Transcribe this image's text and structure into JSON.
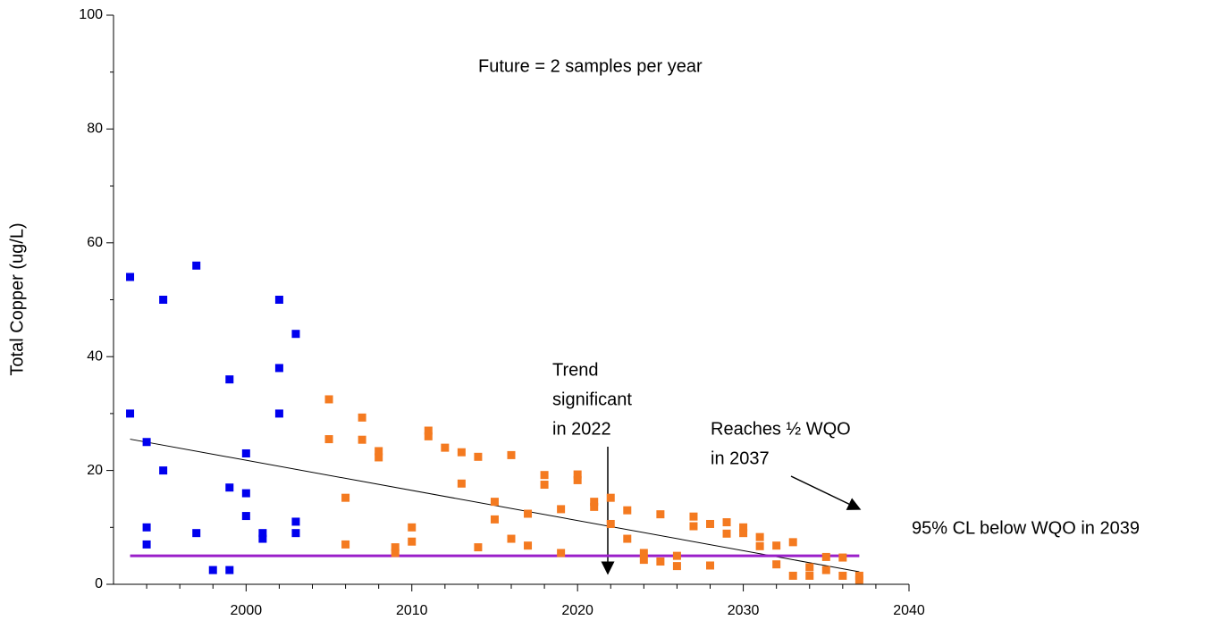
{
  "chart_data": {
    "type": "scatter",
    "y_label": "Total Copper (ug/L)",
    "xlim": [
      1992,
      2040
    ],
    "xticks": [
      2000,
      2010,
      2020,
      2030,
      2040
    ],
    "xminorticks": [
      1994,
      1996,
      1998,
      2002,
      2004,
      2006,
      2008,
      2012,
      2014,
      2016,
      2018,
      2022,
      2024,
      2026,
      2028,
      2032,
      2034,
      2036,
      2038
    ],
    "ylim": [
      0,
      100
    ],
    "yticks": [
      0,
      20,
      40,
      60,
      80,
      100
    ],
    "yminorticks": [
      10,
      30,
      50,
      70,
      90
    ],
    "series": [
      {
        "color": "#0000ee",
        "x": [
          1993,
          1993,
          1994,
          1994,
          1994,
          1995,
          1995,
          1997,
          1997,
          1998,
          1999,
          1999,
          1999,
          2000,
          2000,
          2000,
          2001,
          2001,
          2002,
          2002,
          2002,
          2003,
          2003,
          2003
        ],
        "values": [
          54,
          30,
          25,
          10,
          7,
          50,
          20,
          56,
          9,
          2.5,
          36,
          17,
          2.5,
          23,
          16,
          12,
          9,
          8,
          50,
          38,
          30,
          44,
          11,
          9
        ]
      },
      {
        "color": "#f47a20",
        "x": [
          2005,
          2005,
          2006,
          2006,
          2007,
          2007,
          2008,
          2008,
          2009,
          2009,
          2010,
          2010,
          2011,
          2011,
          2012,
          2013,
          2013,
          2014,
          2014,
          2015,
          2015,
          2016,
          2016,
          2017,
          2017,
          2018,
          2018,
          2019,
          2019,
          2020,
          2020,
          2021,
          2021,
          2022,
          2022,
          2023,
          2023,
          2024,
          2024,
          2025,
          2025,
          2026,
          2026,
          2027,
          2027,
          2028,
          2028,
          2029,
          2029,
          2030,
          2030,
          2031,
          2031,
          2032,
          2032,
          2033,
          2033,
          2034,
          2034,
          2035,
          2035,
          2036,
          2036,
          2037,
          2037
        ],
        "values": [
          32.5,
          25.5,
          15.2,
          7,
          29.3,
          25.4,
          23.4,
          22.3,
          6.5,
          5.5,
          10,
          7.5,
          27,
          26,
          24,
          23.2,
          17.7,
          22.4,
          6.5,
          14.5,
          11.4,
          22.7,
          8,
          12.4,
          6.8,
          19.2,
          17.5,
          13.2,
          5.5,
          19.3,
          18.3,
          14.5,
          13.6,
          15.2,
          10.6,
          13,
          8,
          5.5,
          4.3,
          12.3,
          4,
          5,
          3.2,
          11.9,
          10.2,
          10.6,
          3.3,
          10.9,
          8.9,
          10,
          9,
          8.3,
          6.7,
          6.8,
          3.5,
          7.4,
          1.5,
          3,
          1.5,
          4.8,
          2.5,
          4.7,
          1.5,
          1.5,
          0.8
        ]
      }
    ],
    "lines": [
      {
        "color": "#000000",
        "x": [
          1993,
          2037
        ],
        "values": [
          25.5,
          2.2
        ]
      },
      {
        "color": "#9a1fc9",
        "x": [
          1993,
          2037
        ],
        "values": [
          5,
          5
        ]
      }
    ],
    "annotations": [
      {
        "lines": [
          "Future = 2 samples per year"
        ]
      },
      {
        "lines": [
          "Trend",
          "significant",
          "in 2022"
        ]
      },
      {
        "lines": [
          "Reaches ½ WQO",
          "in 2037"
        ]
      },
      {
        "lines": [
          "95% CL below WQO in 2039"
        ]
      }
    ]
  }
}
